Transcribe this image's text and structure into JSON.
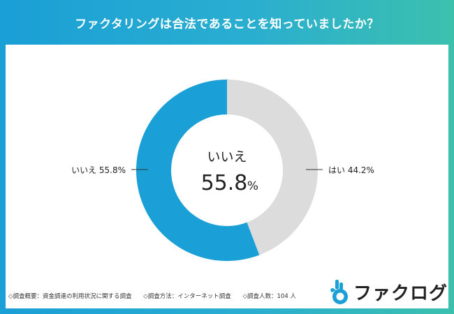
{
  "title": "ファクタリングは合法であることを知っていましたか？",
  "chart_data": {
    "type": "pie",
    "donut": true,
    "categories": [
      "はい",
      "いいえ"
    ],
    "values": [
      44.2,
      55.8
    ],
    "colors": [
      "#dcdcdc",
      "#1a9fd6"
    ],
    "labels": [
      {
        "category": "はい",
        "text": "はい 44.2%"
      },
      {
        "category": "いいえ",
        "text": "いいえ 55.8%"
      }
    ],
    "center_label": "いいえ",
    "center_value": "55.8",
    "center_unit": "%"
  },
  "footer": {
    "item1": "◇調査概要：資金調達の利用状況に関する調査",
    "item2": "◇調査方法：インターネット調査",
    "item3": "◇調査人数：104 人"
  },
  "logo": {
    "text": "ファクログ",
    "icon": "thumbs-up-icon",
    "icon_color": "#1a9fd6"
  }
}
